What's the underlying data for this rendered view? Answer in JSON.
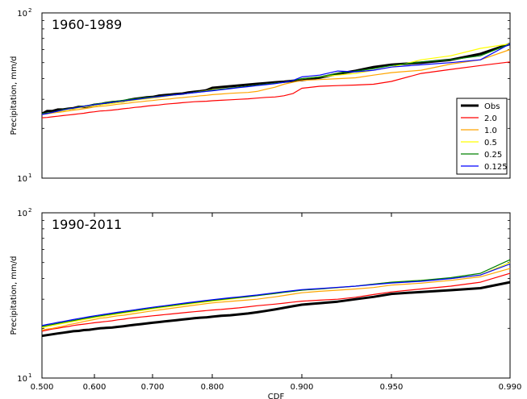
{
  "chart_data": [
    {
      "type": "line",
      "title": "1960-1989",
      "xlabel": "",
      "ylabel": "Precipitation, mm/d",
      "yscale": "log",
      "ylim": [
        10,
        100
      ],
      "xlim": [
        0.5,
        0.99
      ],
      "y_ticks": [
        {
          "value": 10,
          "base": "10",
          "exp": "1"
        },
        {
          "value": 100,
          "base": "10",
          "exp": "2"
        }
      ],
      "x_ticks": [],
      "grid": false,
      "legend_position": "lower-right",
      "x": [
        0.5,
        0.51,
        0.52,
        0.53,
        0.54,
        0.55,
        0.56,
        0.57,
        0.58,
        0.59,
        0.6,
        0.61,
        0.62,
        0.63,
        0.64,
        0.65,
        0.66,
        0.67,
        0.68,
        0.69,
        0.7,
        0.71,
        0.72,
        0.73,
        0.74,
        0.75,
        0.76,
        0.77,
        0.78,
        0.79,
        0.8,
        0.81,
        0.82,
        0.83,
        0.84,
        0.85,
        0.86,
        0.87,
        0.88,
        0.89,
        0.9,
        0.91,
        0.92,
        0.93,
        0.94,
        0.95,
        0.96,
        0.97,
        0.98,
        0.99
      ],
      "series": [
        {
          "name": "Obs",
          "color": "#000000",
          "width": 3,
          "values": [
            24.5,
            25.5,
            25.5,
            26,
            26,
            26.3,
            26.5,
            27,
            27,
            27.3,
            27.8,
            28,
            28.5,
            28.8,
            29,
            29.2,
            29.8,
            30.2,
            30.5,
            30.8,
            31,
            31.5,
            31.8,
            32,
            32.3,
            32.5,
            33,
            33.3,
            33.6,
            34,
            35.2,
            35.6,
            36,
            36.4,
            36.8,
            37.2,
            37.6,
            38,
            38.3,
            38.8,
            39.2,
            40.6,
            42.8,
            44.6,
            47,
            48.6,
            50,
            52,
            56.5,
            65
          ]
        },
        {
          "name": "2.0",
          "color": "#ff0000",
          "width": 1.2,
          "values": [
            23.2,
            23.3,
            23.5,
            23.7,
            23.9,
            24.1,
            24.3,
            24.5,
            24.7,
            25,
            25.2,
            25.5,
            25.6,
            25.8,
            26,
            26.3,
            26.5,
            26.8,
            27,
            27.3,
            27.5,
            27.7,
            28,
            28.2,
            28.4,
            28.6,
            28.8,
            29,
            29.1,
            29.2,
            29.4,
            29.6,
            29.8,
            30,
            30.2,
            30.5,
            30.8,
            31,
            31.5,
            32.5,
            35,
            36,
            36.3,
            36.6,
            37,
            38.5,
            43,
            45.5,
            48,
            50.5
          ]
        },
        {
          "name": "1.0",
          "color": "#ffa500",
          "width": 1.2,
          "values": [
            24.3,
            24.5,
            24.8,
            25,
            25.2,
            25.5,
            25.8,
            26,
            26.3,
            26.6,
            27,
            27.2,
            27.4,
            27.7,
            28,
            28.2,
            28.5,
            28.8,
            29,
            29.3,
            29.5,
            29.8,
            30,
            30.2,
            30.5,
            30.7,
            31,
            31.2,
            31.5,
            31.7,
            32,
            32.3,
            32.6,
            32.8,
            33,
            33.5,
            34.5,
            35.5,
            37,
            38,
            39,
            39.5,
            40,
            40.5,
            42,
            43.5,
            45,
            49,
            52,
            60
          ]
        },
        {
          "name": "0.5",
          "color": "#ffff00",
          "width": 1.2,
          "values": [
            24.5,
            24.8,
            25,
            25.3,
            25.6,
            26,
            26.3,
            26.6,
            27,
            27.2,
            27.5,
            27.8,
            28,
            28.3,
            28.6,
            29,
            29.3,
            29.6,
            30,
            30.2,
            30.5,
            30.8,
            31.2,
            31.6,
            32,
            32.3,
            32.6,
            33,
            33.4,
            33.8,
            34.2,
            34.6,
            35,
            35.5,
            36,
            36.5,
            37,
            37.5,
            38,
            39,
            40,
            41,
            42,
            43,
            45,
            47,
            52,
            55,
            61,
            65
          ]
        },
        {
          "name": "0.25",
          "color": "#008000",
          "width": 1.2,
          "values": [
            24.5,
            24.8,
            25,
            25.5,
            26,
            26.3,
            26.5,
            27,
            27.3,
            27.6,
            28,
            28.3,
            28.6,
            29,
            29.3,
            29.6,
            30,
            30.2,
            30.5,
            30.8,
            31,
            31.2,
            31.5,
            31.8,
            32,
            32.3,
            32.6,
            33,
            33.3,
            33.6,
            34,
            34.5,
            35,
            35.5,
            36,
            36.5,
            37,
            37.5,
            38,
            39,
            40,
            41,
            43,
            44.5,
            46,
            48,
            50.5,
            52,
            55,
            65
          ]
        },
        {
          "name": "0.125",
          "color": "#0000ff",
          "width": 1.2,
          "values": [
            24.3,
            24.6,
            25,
            25.4,
            25.8,
            26.2,
            26.5,
            26.8,
            27.2,
            27.5,
            27.8,
            28.1,
            28.4,
            28.7,
            29,
            29.3,
            29.6,
            29.9,
            30.2,
            30.5,
            30.8,
            31.1,
            31.4,
            31.7,
            32,
            32.3,
            32.6,
            32.9,
            33.2,
            33.5,
            33.8,
            34.3,
            34.8,
            35.3,
            35.8,
            36.3,
            36.8,
            37.3,
            38,
            39,
            41,
            42,
            44.5,
            44,
            45,
            47,
            48.5,
            50,
            52,
            65
          ]
        }
      ]
    },
    {
      "type": "line",
      "title": "1990-2011",
      "xlabel": "CDF",
      "ylabel": "Precipitation, mm/d",
      "yscale": "log",
      "ylim": [
        10,
        100
      ],
      "xlim": [
        0.5,
        0.99
      ],
      "y_ticks": [
        {
          "value": 10,
          "base": "10",
          "exp": "1"
        },
        {
          "value": 100,
          "base": "10",
          "exp": "2"
        }
      ],
      "x_ticks": [
        {
          "value": 0.5,
          "label": "0.500"
        },
        {
          "value": 0.6,
          "label": "0.600"
        },
        {
          "value": 0.7,
          "label": "0.700"
        },
        {
          "value": 0.8,
          "label": "0.800"
        },
        {
          "value": 0.9,
          "label": "0.900"
        },
        {
          "value": 0.95,
          "label": "0.950"
        },
        {
          "value": 0.99,
          "label": "0.990"
        }
      ],
      "grid": false,
      "x": [
        0.5,
        0.51,
        0.52,
        0.53,
        0.54,
        0.55,
        0.56,
        0.57,
        0.58,
        0.59,
        0.6,
        0.61,
        0.62,
        0.63,
        0.64,
        0.65,
        0.66,
        0.67,
        0.68,
        0.69,
        0.7,
        0.71,
        0.72,
        0.73,
        0.74,
        0.75,
        0.76,
        0.77,
        0.78,
        0.79,
        0.8,
        0.81,
        0.82,
        0.83,
        0.84,
        0.85,
        0.86,
        0.87,
        0.88,
        0.89,
        0.9,
        0.91,
        0.92,
        0.93,
        0.94,
        0.95,
        0.96,
        0.97,
        0.98,
        0.99
      ],
      "series": [
        {
          "name": "Obs",
          "color": "#000000",
          "width": 3,
          "values": [
            18,
            18.2,
            18.4,
            18.6,
            18.8,
            19,
            19.2,
            19.3,
            19.5,
            19.6,
            19.8,
            20,
            20.1,
            20.2,
            20.4,
            20.6,
            20.8,
            21,
            21.2,
            21.4,
            21.6,
            21.8,
            22,
            22.2,
            22.4,
            22.6,
            22.8,
            23,
            23.2,
            23.3,
            23.5,
            23.8,
            24,
            24.3,
            24.6,
            25,
            25.5,
            26,
            26.6,
            27.2,
            27.8,
            28.4,
            29,
            30,
            31,
            32.3,
            33.2,
            34,
            35,
            38
          ]
        },
        {
          "name": "2.0",
          "color": "#ff0000",
          "width": 1.2,
          "values": [
            19.2,
            19.5,
            19.8,
            20,
            20.3,
            20.5,
            20.8,
            21,
            21.2,
            21.4,
            21.6,
            21.8,
            22,
            22.2,
            22.5,
            22.7,
            23,
            23.2,
            23.4,
            23.6,
            23.8,
            24,
            24.2,
            24.4,
            24.6,
            24.8,
            25,
            25.2,
            25.4,
            25.6,
            25.8,
            26,
            26.3,
            26.6,
            27,
            27.4,
            27.7,
            28,
            28.4,
            28.8,
            29.2,
            29.6,
            30,
            30.8,
            32,
            33.2,
            34.6,
            36,
            38,
            43
          ]
        },
        {
          "name": "1.0",
          "color": "#ffa500",
          "width": 1.2,
          "values": [
            19.5,
            19.8,
            20,
            20.3,
            20.6,
            21,
            21.3,
            21.6,
            22,
            22.3,
            22.6,
            23,
            23.2,
            23.5,
            23.8,
            24,
            24.3,
            24.6,
            24.9,
            25.2,
            25.5,
            25.8,
            26.1,
            26.4,
            26.7,
            27,
            27.3,
            27.6,
            27.9,
            28.2,
            28.5,
            28.8,
            29.1,
            29.4,
            29.7,
            30,
            30.5,
            31,
            31.6,
            32.2,
            32.8,
            33.5,
            34,
            34.6,
            35.3,
            36.5,
            37.5,
            39,
            41,
            46
          ]
        },
        {
          "name": "0.5",
          "color": "#ffff00",
          "width": 1.2,
          "values": [
            20.2,
            20.5,
            20.8,
            21.1,
            21.4,
            21.7,
            22,
            22.3,
            22.6,
            22.9,
            23.2,
            23.5,
            23.8,
            24.1,
            24.4,
            24.7,
            25,
            25.3,
            25.6,
            25.9,
            26.2,
            26.5,
            26.8,
            27.1,
            27.4,
            27.7,
            28,
            28.3,
            28.6,
            28.9,
            29.2,
            29.6,
            30,
            30.5,
            31,
            31.5,
            32,
            32.5,
            33,
            33.5,
            34,
            34.6,
            35.2,
            36,
            37,
            38,
            39,
            40,
            42,
            50
          ]
        },
        {
          "name": "0.25",
          "color": "#008000",
          "width": 1.2,
          "values": [
            20.5,
            20.8,
            21.1,
            21.4,
            21.7,
            22,
            22.3,
            22.6,
            22.9,
            23.2,
            23.5,
            23.8,
            24.1,
            24.4,
            24.7,
            25,
            25.3,
            25.6,
            25.9,
            26.2,
            26.5,
            26.8,
            27.1,
            27.4,
            27.7,
            28,
            28.3,
            28.6,
            28.9,
            29.2,
            29.5,
            29.9,
            30.3,
            30.7,
            31.1,
            31.5,
            32,
            32.5,
            33,
            33.5,
            34,
            34.6,
            35.3,
            36,
            37,
            38,
            39,
            40.5,
            43,
            52
          ]
        },
        {
          "name": "0.125",
          "color": "#0000ff",
          "width": 1.2,
          "values": [
            20.8,
            21.1,
            21.4,
            21.7,
            22,
            22.3,
            22.6,
            22.9,
            23.2,
            23.5,
            23.8,
            24.1,
            24.4,
            24.7,
            25,
            25.3,
            25.6,
            25.9,
            26.2,
            26.5,
            26.8,
            27.1,
            27.4,
            27.7,
            28,
            28.3,
            28.6,
            28.9,
            29.2,
            29.5,
            29.8,
            30.2,
            30.6,
            31,
            31.4,
            31.8,
            32.3,
            32.8,
            33.3,
            33.8,
            34.3,
            34.8,
            35.4,
            36,
            36.8,
            37.6,
            38.5,
            40,
            42,
            49
          ]
        }
      ]
    }
  ]
}
